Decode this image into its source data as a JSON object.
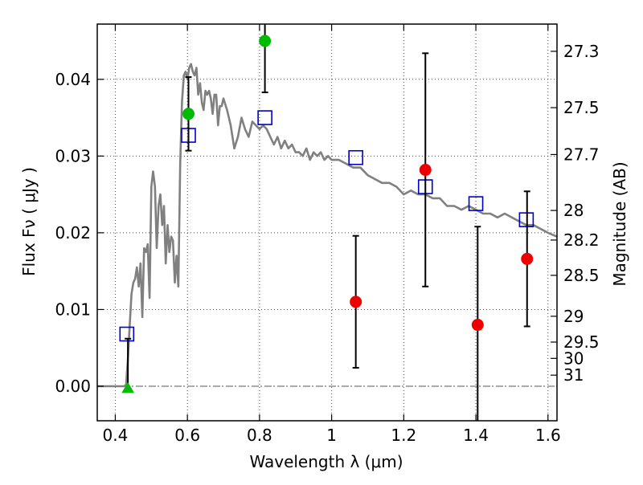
{
  "chart_data": {
    "type": "scatter",
    "title": "",
    "xlabel": "Wavelength  λ (μm)",
    "ylabel": "Flux  Fν  ( μJy )",
    "right_ylabel": "Magnitude (AB)",
    "xlim": [
      0.35,
      1.625
    ],
    "ylim": [
      -0.0045,
      0.0472
    ],
    "grid": true,
    "legend": "none",
    "x_ticks": [
      0.4,
      0.6,
      0.8,
      1.0,
      1.2,
      1.4,
      1.6
    ],
    "x_tick_labels": [
      "0.4",
      "0.6",
      "0.8",
      "1",
      "1.2",
      "1.4",
      "1.6"
    ],
    "y_ticks": [
      0.0,
      0.01,
      0.02,
      0.03,
      0.04
    ],
    "y_tick_labels": [
      "0.00",
      "0.01",
      "0.02",
      "0.03",
      "0.04"
    ],
    "right_ticks": [
      {
        "label": "27.3",
        "value": 27.3
      },
      {
        "label": "27.5",
        "value": 27.5
      },
      {
        "label": "27.7",
        "value": 27.7
      },
      {
        "label": "28",
        "value": 28.0
      },
      {
        "label": "28.2",
        "value": 28.2
      },
      {
        "label": "28.5",
        "value": 28.5
      },
      {
        "label": "29",
        "value": 29.0
      },
      {
        "label": "29.5",
        "value": 29.5
      },
      {
        "label": "30",
        "value": 30.0
      },
      {
        "label": "31",
        "value": 31.0
      }
    ],
    "colors": {
      "sed": "#808080",
      "model_marker": "#0000cc",
      "detection": "#00bb00",
      "non_detection": "#ee0000",
      "upper_limit": "#00bb00",
      "errorbar": "#000000",
      "zero_line": "#555555"
    },
    "series": [
      {
        "kind": "line",
        "x": [
          0.35,
          0.425,
          0.43,
          0.435,
          0.44,
          0.445,
          0.45,
          0.455,
          0.46,
          0.465,
          0.47,
          0.475,
          0.48,
          0.485,
          0.49,
          0.495,
          0.5,
          0.505,
          0.51,
          0.515,
          0.52,
          0.525,
          0.53,
          0.535,
          0.54,
          0.545,
          0.55,
          0.555,
          0.56,
          0.565,
          0.57,
          0.575,
          0.58,
          0.585,
          0.59,
          0.595,
          0.6,
          0.605,
          0.61,
          0.615,
          0.62,
          0.625,
          0.63,
          0.635,
          0.64,
          0.645,
          0.65,
          0.655,
          0.66,
          0.665,
          0.67,
          0.675,
          0.68,
          0.685,
          0.69,
          0.695,
          0.7,
          0.71,
          0.72,
          0.73,
          0.74,
          0.75,
          0.76,
          0.77,
          0.78,
          0.79,
          0.8,
          0.81,
          0.82,
          0.83,
          0.84,
          0.85,
          0.86,
          0.87,
          0.88,
          0.89,
          0.9,
          0.91,
          0.92,
          0.93,
          0.94,
          0.95,
          0.96,
          0.97,
          0.98,
          0.99,
          1.0,
          1.02,
          1.04,
          1.06,
          1.08,
          1.1,
          1.12,
          1.14,
          1.16,
          1.18,
          1.2,
          1.22,
          1.24,
          1.26,
          1.28,
          1.3,
          1.32,
          1.34,
          1.36,
          1.38,
          1.4,
          1.42,
          1.44,
          1.46,
          1.48,
          1.5,
          1.52,
          1.54,
          1.56,
          1.58,
          1.6,
          1.625
        ],
        "y": [
          0.0,
          0.0,
          0.0002,
          0.0035,
          0.008,
          0.012,
          0.0135,
          0.014,
          0.0155,
          0.013,
          0.016,
          0.009,
          0.018,
          0.0175,
          0.0185,
          0.0115,
          0.026,
          0.028,
          0.026,
          0.018,
          0.0235,
          0.025,
          0.021,
          0.0235,
          0.016,
          0.021,
          0.0175,
          0.0195,
          0.019,
          0.0135,
          0.017,
          0.013,
          0.029,
          0.037,
          0.0405,
          0.041,
          0.04,
          0.0415,
          0.042,
          0.041,
          0.0405,
          0.0415,
          0.038,
          0.0395,
          0.037,
          0.036,
          0.0385,
          0.038,
          0.0385,
          0.0375,
          0.0355,
          0.038,
          0.038,
          0.034,
          0.0365,
          0.0365,
          0.0375,
          0.036,
          0.034,
          0.031,
          0.0325,
          0.035,
          0.0335,
          0.0325,
          0.0345,
          0.034,
          0.0335,
          0.034,
          0.0335,
          0.0325,
          0.0315,
          0.0325,
          0.031,
          0.032,
          0.031,
          0.0315,
          0.0305,
          0.0305,
          0.03,
          0.031,
          0.0295,
          0.0305,
          0.03,
          0.0305,
          0.0295,
          0.03,
          0.0295,
          0.0295,
          0.029,
          0.0285,
          0.0285,
          0.0275,
          0.027,
          0.0265,
          0.0265,
          0.026,
          0.025,
          0.0255,
          0.025,
          0.025,
          0.0245,
          0.0245,
          0.0235,
          0.0235,
          0.023,
          0.0235,
          0.023,
          0.0225,
          0.0225,
          0.022,
          0.0225,
          0.022,
          0.0215,
          0.021,
          0.021,
          0.0205,
          0.02,
          0.0195
        ]
      },
      {
        "kind": "model_squares",
        "x": [
          0.432,
          0.603,
          0.815,
          1.067,
          1.26,
          1.4,
          1.54
        ],
        "y": [
          0.0068,
          0.0327,
          0.035,
          0.0298,
          0.026,
          0.0238,
          0.0217
        ]
      },
      {
        "kind": "detections",
        "x": [
          0.603,
          0.815
        ],
        "y": [
          0.0355,
          0.045
        ],
        "yerr": [
          0.0048,
          0.0067
        ]
      },
      {
        "kind": "non_detections",
        "x": [
          1.067,
          1.26,
          1.405,
          1.542
        ],
        "y": [
          0.011,
          0.0282,
          0.008,
          0.0166
        ],
        "yerr": [
          0.0086,
          0.0152,
          0.0128,
          0.0088
        ]
      },
      {
        "kind": "upper_limits",
        "x": [
          0.435
        ],
        "y": [
          -0.0003
        ],
        "yerr": [
          0.0065
        ]
      }
    ]
  }
}
